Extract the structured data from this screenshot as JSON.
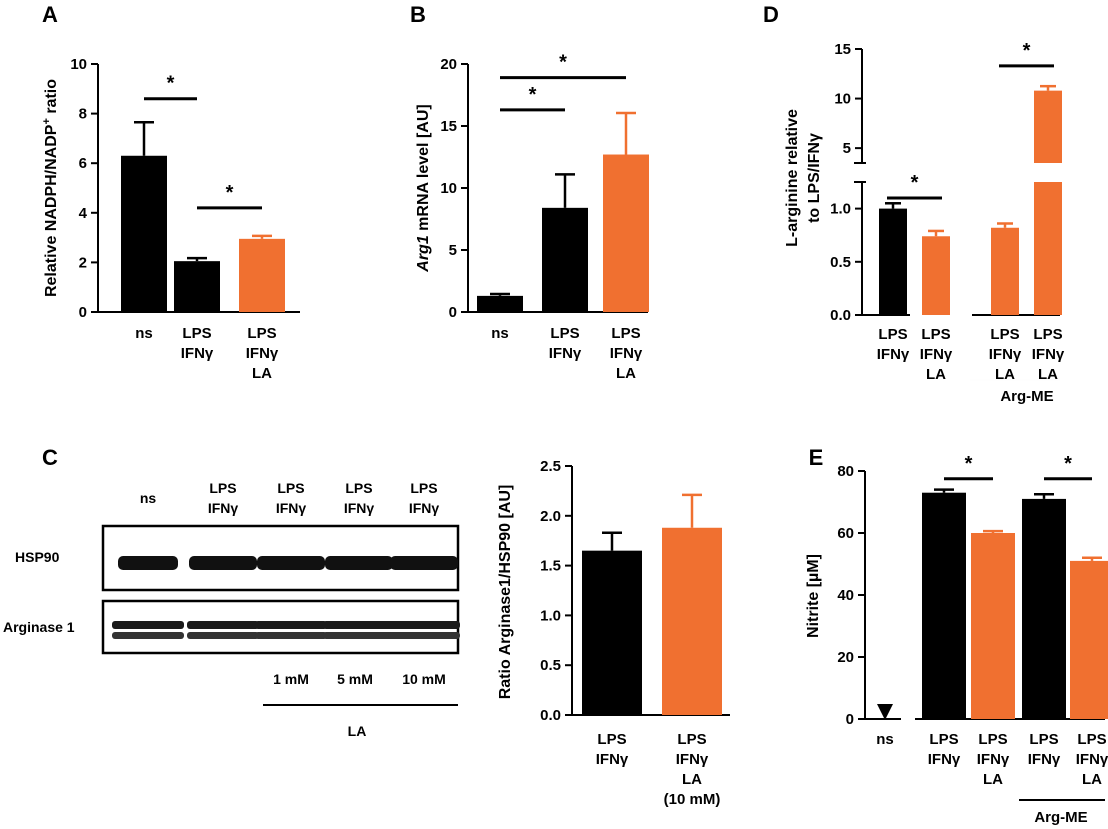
{
  "colors": {
    "black": "#000000",
    "orange": "#f07030"
  },
  "chart_data": [
    {
      "panel": "A",
      "type": "bar",
      "ylabel_parts": [
        "Relative NADPH/NADP",
        "+",
        " ratio"
      ],
      "ylim": [
        0,
        10
      ],
      "yticks": [
        "0",
        "2",
        "4",
        "6",
        "8",
        "10"
      ],
      "categories": [
        [
          "ns"
        ],
        [
          "LPS",
          "IFNγ"
        ],
        [
          "LPS",
          "IFNγ",
          "LA"
        ]
      ],
      "values": [
        6.3,
        2.05,
        2.95
      ],
      "errors": [
        1.35,
        0.12,
        0.12
      ],
      "bar_colors": [
        "black",
        "black",
        "orange"
      ],
      "significance": [
        {
          "from": 0,
          "to": 1,
          "y": 8.6,
          "label": "*"
        },
        {
          "from": 1,
          "to": 2,
          "y": 4.2,
          "label": "*"
        }
      ]
    },
    {
      "panel": "B",
      "type": "bar",
      "ylabel_parts": [
        "Arg1",
        " mRNA level [AU]"
      ],
      "ylim": [
        0,
        20
      ],
      "yticks": [
        "0",
        "5",
        "10",
        "15",
        "20"
      ],
      "categories": [
        [
          "ns"
        ],
        [
          "LPS",
          "IFNγ"
        ],
        [
          "LPS",
          "IFNγ",
          "LA"
        ]
      ],
      "values": [
        1.3,
        8.4,
        12.7
      ],
      "errors": [
        0.15,
        2.7,
        3.35
      ],
      "bar_colors": [
        "black",
        "black",
        "orange"
      ],
      "significance": [
        {
          "from": 0,
          "to": 1,
          "y": 16.3,
          "label": "*"
        },
        {
          "from": 0,
          "to": 2,
          "y": 18.9,
          "label": "*"
        }
      ]
    },
    {
      "panel": "D",
      "type": "bar",
      "ylabel": [
        "L-arginine relative",
        "to LPS/IFNγ"
      ],
      "axis_break": [
        1.25,
        3.5
      ],
      "ylim_lower": [
        0,
        1.25
      ],
      "ylim_upper": [
        3.5,
        15
      ],
      "yticks_lower": [
        "0.0",
        "0.5",
        "1.0"
      ],
      "yticks_upper": [
        "5",
        "10",
        "15"
      ],
      "categories": [
        [
          "LPS",
          "IFNγ"
        ],
        [
          "LPS",
          "IFNγ",
          "LA"
        ],
        [
          "LPS",
          "IFNγ",
          "LA"
        ],
        [
          "LPS",
          "IFNγ",
          "LA"
        ]
      ],
      "values": [
        1.0,
        0.74,
        0.82,
        10.8
      ],
      "errors": [
        0.05,
        0.05,
        0.04,
        0.45
      ],
      "bar_colors": [
        "black",
        "orange",
        "orange",
        "orange"
      ],
      "group_label": "Arg-ME",
      "significance": [
        {
          "from": 0,
          "to": 1,
          "y": 1.1,
          "label": "*"
        },
        {
          "from": 2,
          "to": 3,
          "y": 13.3,
          "label": "*"
        }
      ]
    },
    {
      "panel": "C",
      "type": "bar",
      "ylabel": "Ratio Arginase1/HSP90 [AU]",
      "ylim": [
        0,
        2.5
      ],
      "yticks": [
        "0.0",
        "0.5",
        "1.0",
        "1.5",
        "2.0",
        "2.5"
      ],
      "categories": [
        [
          "LPS",
          "IFNγ"
        ],
        [
          "LPS",
          "IFNγ",
          "LA",
          "(10 mM)"
        ]
      ],
      "values": [
        1.65,
        1.88
      ],
      "errors": [
        0.18,
        0.33
      ],
      "bar_colors": [
        "black",
        "orange"
      ]
    },
    {
      "panel": "E",
      "type": "bar",
      "ylabel": "Nitrite [µM]",
      "ylim": [
        0,
        80
      ],
      "yticks": [
        "0",
        "20",
        "40",
        "60",
        "80"
      ],
      "categories": [
        [
          "ns"
        ],
        [
          "LPS",
          "IFNγ"
        ],
        [
          "LPS",
          "IFNγ",
          "LA"
        ],
        [
          "LPS",
          "IFNγ"
        ],
        [
          "LPS",
          "IFNγ",
          "LA"
        ]
      ],
      "values": [
        0,
        73,
        60,
        71,
        51
      ],
      "errors": [
        0,
        1.0,
        0.6,
        1.5,
        1.0
      ],
      "bar_colors": [
        "black",
        "black",
        "orange",
        "black",
        "orange"
      ],
      "group_label": "Arg-ME",
      "significance": [
        {
          "from": 1,
          "to": 2,
          "y": 77.5,
          "label": "*"
        },
        {
          "from": 3,
          "to": 4,
          "y": 77.5,
          "label": "*"
        }
      ]
    }
  ],
  "western_blot": {
    "panel": "C",
    "lane_headers": [
      [
        "ns"
      ],
      [
        "LPS",
        "IFNγ"
      ],
      [
        "LPS",
        "IFNγ"
      ],
      [
        "LPS",
        "IFNγ"
      ],
      [
        "LPS",
        "IFNγ"
      ]
    ],
    "row_labels": [
      "HSP90",
      "Arginase 1"
    ],
    "concentrations": [
      "1 mM",
      "5 mM",
      "10 mM"
    ],
    "treatment_label": "LA"
  }
}
